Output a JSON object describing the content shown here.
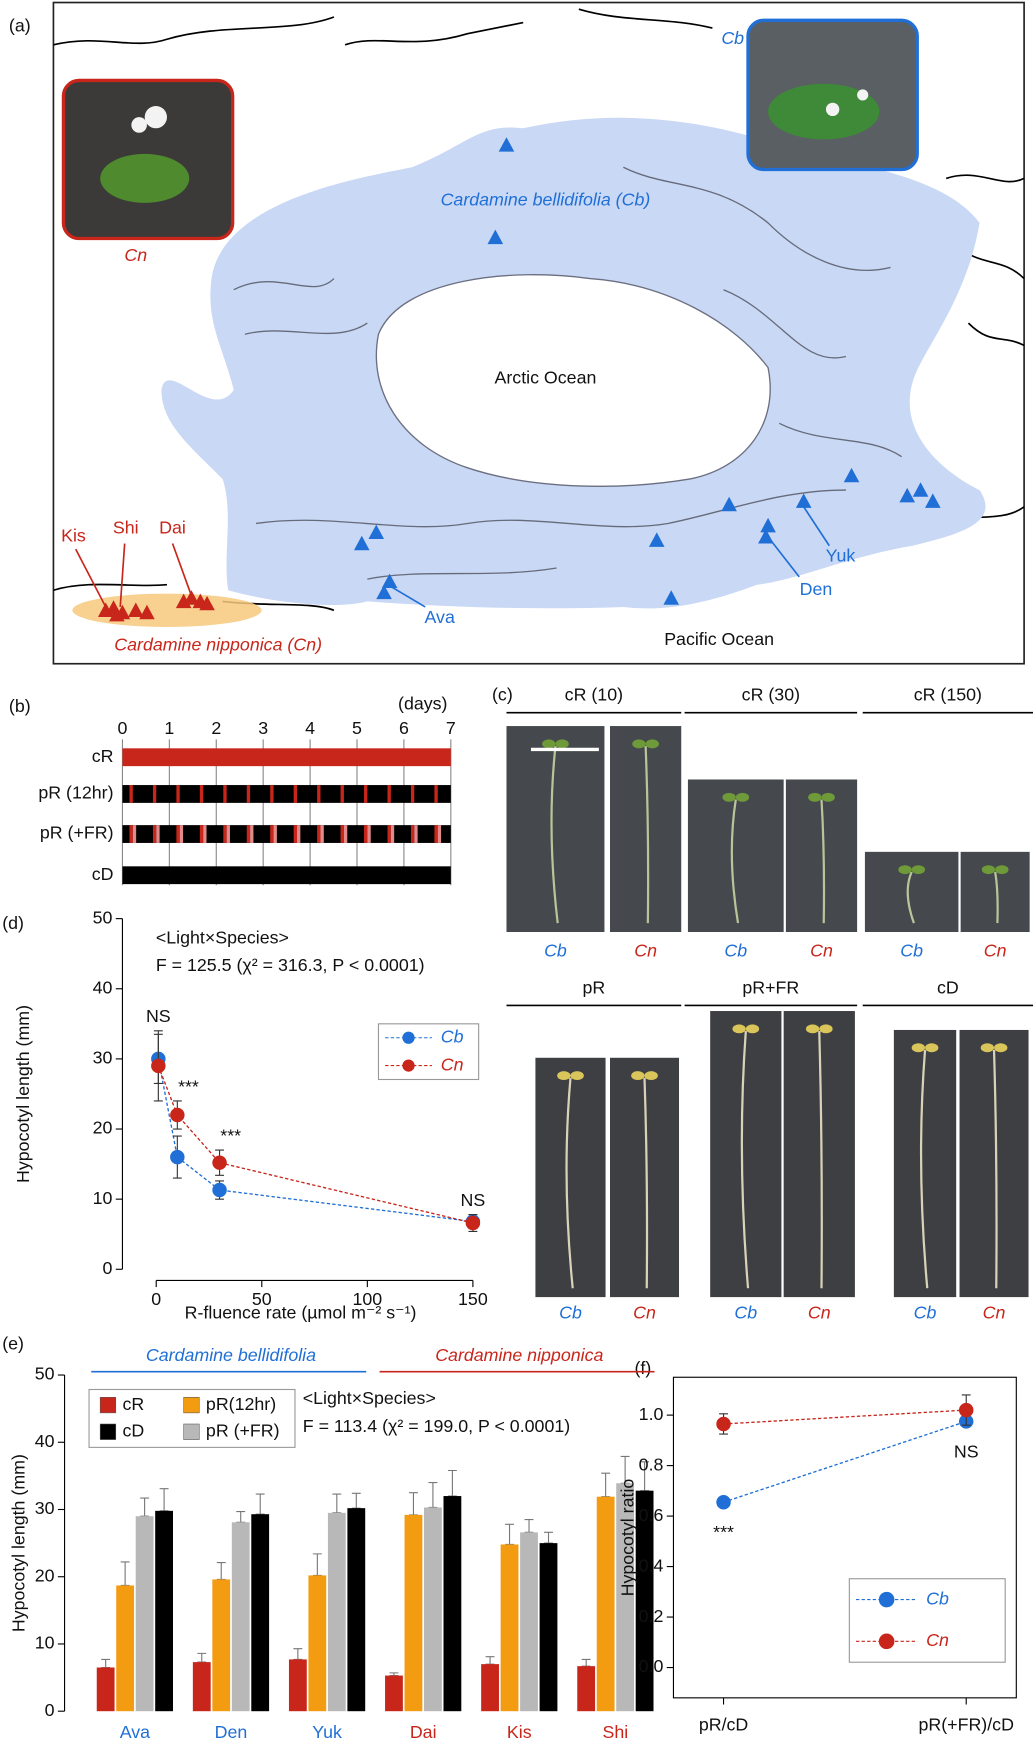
{
  "panel_labels": [
    "(a)",
    "(b)",
    "(c)",
    "(d)",
    "(e)",
    "(f)"
  ],
  "map": {
    "inset_cn_label": "Cn",
    "inset_cb_label": "Cb",
    "range_cb_label": "Cardamine bellidifolia (Cb)",
    "range_cn_label": "Cardamine nipponica (Cn)",
    "ocean_labels": [
      "Arctic Ocean",
      "Pacific Ocean"
    ],
    "site_labels": [
      "Kis",
      "Shi",
      "Dai",
      "Yuk",
      "Den",
      "Ava"
    ]
  },
  "schedule": {
    "unit": "(days)",
    "days": [
      0,
      1,
      2,
      3,
      4,
      5,
      6,
      7
    ],
    "rows": [
      "cR",
      "pR (12hr)",
      "pR (+FR)",
      "cD"
    ]
  },
  "photos": {
    "conditions": [
      "cR (10)",
      "cR (30)",
      "cR (150)",
      "pR",
      "pR+FR",
      "cD"
    ],
    "species": [
      "Cb",
      "Cn"
    ]
  },
  "chart_data": [
    {
      "type": "line",
      "x": [
        1,
        10,
        30,
        150
      ],
      "xlim": [
        -16,
        158
      ],
      "xticks": [
        0,
        50,
        100,
        150
      ],
      "ylim": [
        0,
        50
      ],
      "yticks": [
        0,
        10,
        20,
        30,
        40,
        50
      ],
      "x_label": "R-fluence rate (µmol m⁻² s⁻¹)",
      "y_label": "Hypocotyl length (mm)",
      "annotations": [
        "<Light×Species>",
        "F =  125.5 (χ² =  316.3, P < 0.0001)"
      ],
      "significance": [
        "NS",
        "***",
        "***",
        "NS"
      ],
      "legend": "upper right",
      "series": [
        {
          "name": "Cb",
          "color": "#1f6fd6",
          "values": [
            30,
            16,
            11.3,
            6.8
          ],
          "errors": [
            3.5,
            3,
            1.3,
            1
          ]
        },
        {
          "name": "Cn",
          "color": "#c8261b",
          "values": [
            29,
            22,
            15.2,
            6.6
          ],
          "errors": [
            5,
            2,
            1.8,
            1.2
          ]
        }
      ]
    },
    {
      "type": "bar",
      "categories": [
        "Ava",
        "Den",
        "Yuk",
        "Dai",
        "Kis",
        "Shi"
      ],
      "category_colors": [
        "#1f6fd6",
        "#1f6fd6",
        "#1f6fd6",
        "#c8261b",
        "#c8261b",
        "#c8261b"
      ],
      "groups": [
        {
          "name": "Cardamine bellidifolia",
          "color": "#1f6fd6"
        },
        {
          "name": "Cardamine nipponica",
          "color": "#c8261b"
        }
      ],
      "ylim": [
        0,
        50
      ],
      "yticks": [
        0,
        10,
        20,
        30,
        40,
        50
      ],
      "y_label": "Hypocotyl length (mm)",
      "annotations": [
        "<Light×Species>",
        "F =  113.4 (χ² = 199.0, P < 0.0001)"
      ],
      "legend": "upper left",
      "series": [
        {
          "name": "cR",
          "color": "#c8261b",
          "values": [
            6.5,
            7.3,
            7.7,
            5.3,
            7,
            6.7
          ],
          "errors": [
            1.2,
            1.3,
            1.6,
            0.4,
            1.1,
            1
          ]
        },
        {
          "name": "pR(12hr)",
          "color": "#f39c12",
          "values": [
            18.7,
            19.6,
            20.2,
            29.2,
            24.8,
            31.9
          ],
          "errors": [
            3.5,
            2.5,
            3.2,
            3.3,
            3,
            3.5
          ]
        },
        {
          "name": "pR (+FR)",
          "color": "#b8b8b8",
          "values": [
            29,
            28.1,
            29.5,
            30.3,
            26.6,
            33.9
          ],
          "errors": [
            2.7,
            1.6,
            2.8,
            3.7,
            1.9,
            4
          ]
        },
        {
          "name": "cD",
          "color": "#000000",
          "values": [
            29.8,
            29.3,
            30.2,
            32,
            25,
            32.8
          ],
          "errors": [
            3.3,
            3,
            2.2,
            3.8,
            1.6,
            4.3
          ]
        }
      ]
    },
    {
      "type": "line",
      "categories": [
        "pR/cD",
        "pR(+FR)/cD"
      ],
      "ylim": [
        -0.12,
        1.15
      ],
      "yticks": [
        {
          "value": 0,
          "label": "0.0"
        },
        0.2,
        0.4,
        0.6,
        0.8,
        {
          "value": 1,
          "label": "1.0"
        }
      ],
      "y_label": "Hypocotyl ratio",
      "significance": [
        "***",
        "NS"
      ],
      "legend": "lower right",
      "frame": true,
      "series": [
        {
          "name": "Cb",
          "color": "#1f6fd6",
          "values": [
            0.655,
            0.975
          ],
          "errors": [
            0.02,
            0.02
          ]
        },
        {
          "name": "Cn",
          "color": "#c8261b",
          "values": [
            0.965,
            1.02
          ],
          "errors": [
            0.04,
            0.06
          ]
        }
      ]
    }
  ]
}
